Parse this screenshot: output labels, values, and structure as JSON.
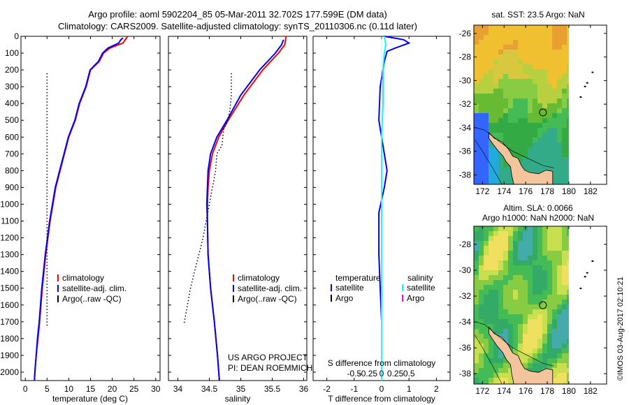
{
  "header": {
    "title_line1": "Argo profile: aoml 5902204_85 05-Mar-2011 32.702S 177.599E (DM data)",
    "title_line2": "Climatology: CARS2009. Satellite-adjusted climatology: synTS_20110306.nc (0.11d later)"
  },
  "footer": {
    "project_line1": "US ARGO PROJECT",
    "project_line2": "PI: DEAN ROEMMICH",
    "copyright": "©IMOS 03-Aug-2017 02:10:21"
  },
  "colors": {
    "climatology": "#ff0000",
    "satellite_temperature": "#0000ff",
    "satellite_salinity": "#00ffff",
    "argo_salinity": "#ff00ff",
    "argo": "#000000",
    "land": "#f4c49c"
  },
  "chart_data": [
    {
      "id": "temperature-profile",
      "type": "line",
      "xlabel": "temperature (deg C)",
      "ylabel": "",
      "xlim": [
        -1,
        31
      ],
      "ylim": [
        2050,
        0
      ],
      "xticks": [
        0,
        5,
        10,
        15,
        20,
        25,
        30
      ],
      "yticks": [
        0,
        100,
        200,
        300,
        400,
        500,
        600,
        700,
        800,
        900,
        1000,
        1100,
        1200,
        1300,
        1400,
        1500,
        1600,
        1700,
        1800,
        1900,
        2000
      ],
      "legend": [
        "climatology",
        "satellite-adj. clim.",
        "Argo(..raw -QC)"
      ],
      "series": [
        {
          "name": "climatology",
          "style": "solid",
          "color": "#ff0000",
          "x": [
            23.5,
            23.0,
            22.5,
            19.5,
            18.0,
            17.0,
            15.0,
            14.0,
            12.5,
            11.5,
            10.0,
            9.0,
            8.0,
            7.0,
            5.7,
            4.7,
            3.9,
            3.3,
            2.9,
            2.5,
            2.2,
            2.1
          ],
          "y": [
            0,
            20,
            40,
            70,
            100,
            150,
            200,
            300,
            400,
            500,
            600,
            700,
            800,
            900,
            1100,
            1300,
            1500,
            1700,
            1800,
            1900,
            2000,
            2050
          ]
        },
        {
          "name": "satellite-adj. clim.",
          "style": "solid",
          "color": "#0000ff",
          "x": [
            22.5,
            22.0,
            21.5,
            19.0,
            17.8,
            16.8,
            14.9,
            13.9,
            12.4,
            11.4,
            9.9,
            8.9,
            7.9,
            6.9,
            5.6,
            4.6,
            3.8,
            3.2,
            2.8,
            2.5,
            2.2,
            2.1
          ],
          "y": [
            10,
            20,
            40,
            70,
            100,
            150,
            200,
            300,
            400,
            500,
            600,
            700,
            800,
            900,
            1100,
            1300,
            1500,
            1700,
            1800,
            1900,
            2000,
            2050
          ]
        },
        {
          "name": "Argo(..raw -QC)",
          "style": "dotted",
          "color": "#000000",
          "x": [
            5.0,
            5.0,
            5.0,
            5.0,
            5.0,
            5.0
          ],
          "y": [
            220,
            500,
            900,
            1200,
            1500,
            1730
          ]
        }
      ]
    },
    {
      "id": "salinity-profile",
      "type": "line",
      "xlabel": "salinity",
      "ylabel": "",
      "xlim": [
        33.85,
        36.05
      ],
      "ylim": [
        2050,
        0
      ],
      "xticks": [
        34,
        34.5,
        35,
        35.5,
        36
      ],
      "legend": [
        "climatology",
        "satellite-adj. clim.",
        "Argo(..raw -QC)"
      ],
      "series": [
        {
          "name": "climatology",
          "style": "solid",
          "color": "#ff0000",
          "x": [
            35.72,
            35.7,
            35.6,
            35.35,
            35.05,
            34.8,
            34.65,
            34.55,
            34.5,
            34.48,
            34.47,
            34.47,
            34.48,
            34.52,
            34.58,
            34.63,
            34.65,
            34.66
          ],
          "y": [
            0,
            50,
            100,
            200,
            350,
            500,
            600,
            700,
            800,
            900,
            1000,
            1100,
            1300,
            1500,
            1700,
            1900,
            2000,
            2050
          ]
        },
        {
          "name": "satellite-adj. clim.",
          "style": "solid",
          "color": "#0000ff",
          "x": [
            35.68,
            35.65,
            35.55,
            35.3,
            35.0,
            34.78,
            34.62,
            34.52,
            34.48,
            34.47,
            34.46,
            34.47,
            34.48,
            34.52,
            34.58,
            34.63,
            34.65,
            34.66
          ],
          "y": [
            20,
            50,
            100,
            200,
            350,
            500,
            600,
            700,
            800,
            900,
            1000,
            1100,
            1300,
            1500,
            1700,
            1900,
            2000,
            2050
          ]
        },
        {
          "name": "Argo(..raw -QC)",
          "style": "dotted",
          "color": "#000000",
          "x": [
            34.85,
            34.85,
            34.83,
            34.8,
            34.73,
            34.7,
            34.62,
            34.6,
            34.5,
            34.45,
            34.4,
            34.3,
            34.2,
            34.1
          ],
          "y": [
            220,
            350,
            430,
            500,
            550,
            650,
            700,
            800,
            1000,
            1100,
            1200,
            1350,
            1500,
            1710
          ]
        }
      ]
    },
    {
      "id": "difference-profile",
      "type": "line",
      "xlabel": "T difference from climatology",
      "x2label": "S difference from climatology",
      "xlim": [
        -2.5,
        2.5
      ],
      "ylim": [
        2050,
        0
      ],
      "xticks": [
        -2,
        -1,
        0,
        1,
        2
      ],
      "x2ticks": [
        -0.5,
        -0.25,
        0,
        0.25,
        0.5
      ],
      "legend_titles": [
        "temperature",
        "salinity"
      ],
      "legend": [
        "satellite",
        "Argo",
        "satellite",
        "Argo"
      ],
      "series": [
        {
          "name": "temperature satellite",
          "style": "solid",
          "color": "#0000ff",
          "x": [
            0.1,
            0.8,
            1.0,
            0.5,
            0.2,
            0.1,
            -0.05,
            -0.1,
            0.1,
            0.2,
            0.1,
            -0.1,
            -0.1,
            -0.05,
            0,
            0
          ],
          "y": [
            0,
            20,
            40,
            70,
            90,
            150,
            300,
            500,
            700,
            800,
            900,
            1050,
            1300,
            1500,
            1700,
            2050
          ]
        },
        {
          "name": "salinity satellite",
          "style": "solid",
          "color": "#00ffff",
          "x": [
            0.1,
            0.15,
            0.1,
            0.05,
            0.05,
            0.0,
            0.0,
            0.0,
            0.0,
            0.0
          ],
          "y": [
            0,
            50,
            100,
            200,
            400,
            600,
            900,
            1200,
            1600,
            2050
          ]
        }
      ]
    },
    {
      "id": "sst-map",
      "type": "heatmap",
      "title": "sat. SST: 23.5 Argo: NaN",
      "xticks": [
        172,
        174,
        176,
        178,
        180,
        182
      ],
      "yticks": [
        -26,
        -28,
        -30,
        -32,
        -34,
        -36,
        -38
      ],
      "xlim": [
        171.2,
        183.5
      ],
      "ylim": [
        -38.8,
        -25.3
      ],
      "float_position": {
        "lon": 177.599,
        "lat": -32.702
      }
    },
    {
      "id": "sla-map",
      "type": "heatmap",
      "title_line1": "Altim. SLA: 0.0066",
      "title_line2": "Argo h1000: NaN h2000: NaN",
      "xticks": [
        172,
        174,
        176,
        178,
        180,
        182
      ],
      "yticks": [
        -28,
        -30,
        -32,
        -34,
        -36,
        -38
      ],
      "xlim": [
        171.2,
        183.5
      ],
      "ylim": [
        -38.8,
        -26.6
      ],
      "float_position": {
        "lon": 177.599,
        "lat": -32.702
      }
    }
  ]
}
